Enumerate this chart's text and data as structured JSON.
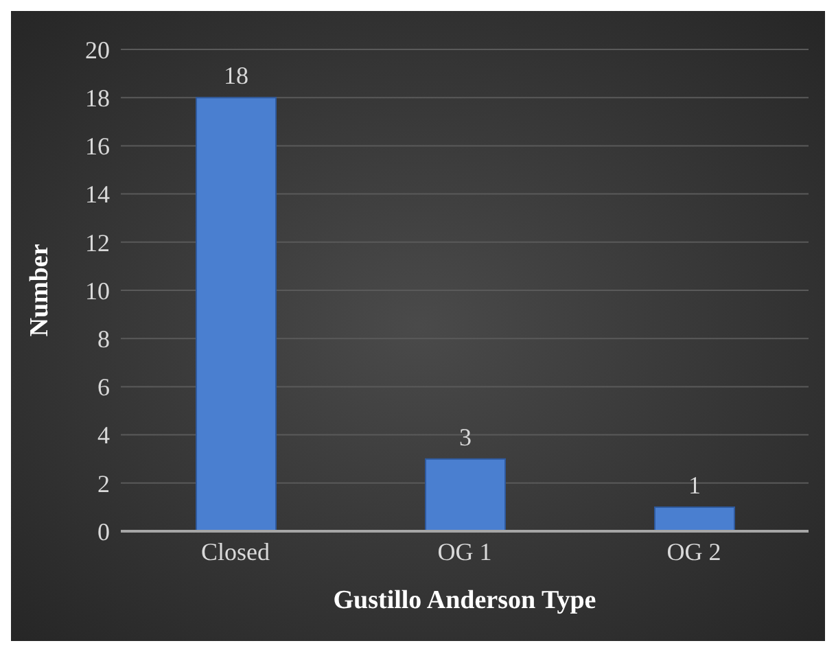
{
  "chart_data": {
    "type": "bar",
    "xlabel": "Gustillo Anderson Type",
    "ylabel": "Number",
    "categories": [
      "Closed",
      "OG 1",
      "OG 2"
    ],
    "values": [
      18,
      3,
      1
    ],
    "color": "#4a7fd0",
    "ylim": [
      0,
      20
    ],
    "yticks": [
      0,
      2,
      4,
      6,
      8,
      10,
      12,
      14,
      16,
      18,
      20
    ],
    "grid": "y",
    "data_labels": true
  }
}
